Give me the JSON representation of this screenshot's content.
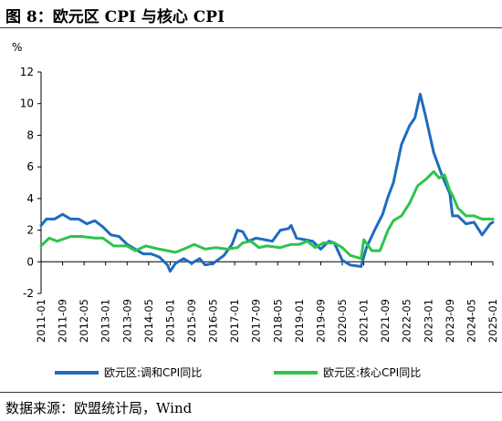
{
  "figure": {
    "title": "图 8：欧元区 CPI 与核心 CPI",
    "source": "数据来源：欧盟统计局，Wind"
  },
  "chart_data": {
    "type": "line",
    "ylabel": "%",
    "ylim": [
      -2,
      12
    ],
    "yticks": [
      -2,
      0,
      2,
      4,
      6,
      8,
      10,
      12
    ],
    "xlim": [
      "2011-01",
      "2025-01"
    ],
    "xticks": [
      "2011-01",
      "2011-09",
      "2012-05",
      "2013-01",
      "2013-09",
      "2014-05",
      "2015-01",
      "2015-09",
      "2016-05",
      "2017-01",
      "2017-09",
      "2018-05",
      "2019-01",
      "2019-09",
      "2020-05",
      "2021-01",
      "2021-09",
      "2022-05",
      "2023-01",
      "2023-09",
      "2024-05",
      "2025-01"
    ],
    "grid": false,
    "legend_position": "bottom",
    "series": [
      {
        "name": "欧元区:调和CPI同比",
        "color": "#1f6bbf",
        "x": [
          "2011-01",
          "2011-03",
          "2011-06",
          "2011-09",
          "2011-12",
          "2012-03",
          "2012-06",
          "2012-09",
          "2012-12",
          "2013-03",
          "2013-06",
          "2013-09",
          "2013-12",
          "2014-03",
          "2014-06",
          "2014-09",
          "2014-12",
          "2015-01",
          "2015-03",
          "2015-06",
          "2015-09",
          "2015-12",
          "2016-02",
          "2016-05",
          "2016-09",
          "2016-12",
          "2017-02",
          "2017-04",
          "2017-06",
          "2017-09",
          "2017-12",
          "2018-03",
          "2018-06",
          "2018-09",
          "2018-10",
          "2018-12",
          "2019-03",
          "2019-06",
          "2019-09",
          "2019-12",
          "2020-02",
          "2020-05",
          "2020-08",
          "2020-12",
          "2021-02",
          "2021-05",
          "2021-08",
          "2021-10",
          "2021-12",
          "2022-03",
          "2022-06",
          "2022-08",
          "2022-10",
          "2022-12",
          "2023-03",
          "2023-06",
          "2023-09",
          "2023-10",
          "2023-12",
          "2024-03",
          "2024-06",
          "2024-09",
          "2024-12",
          "2025-01"
        ],
        "values": [
          2.3,
          2.7,
          2.7,
          3.0,
          2.7,
          2.7,
          2.4,
          2.6,
          2.2,
          1.7,
          1.6,
          1.1,
          0.8,
          0.5,
          0.5,
          0.3,
          -0.2,
          -0.6,
          -0.1,
          0.2,
          -0.1,
          0.2,
          -0.2,
          -0.1,
          0.4,
          1.1,
          2.0,
          1.9,
          1.3,
          1.5,
          1.4,
          1.3,
          2.0,
          2.1,
          2.3,
          1.5,
          1.4,
          1.3,
          0.8,
          1.3,
          1.2,
          0.1,
          -0.2,
          -0.3,
          0.9,
          2.0,
          3.0,
          4.1,
          5.0,
          7.4,
          8.6,
          9.1,
          10.6,
          9.2,
          6.9,
          5.5,
          4.3,
          2.9,
          2.9,
          2.4,
          2.5,
          1.7,
          2.4,
          2.5
        ]
      },
      {
        "name": "欧元区:核心CPI同比",
        "color": "#2ec44a",
        "x": [
          "2011-01",
          "2011-04",
          "2011-07",
          "2011-12",
          "2012-04",
          "2012-09",
          "2012-12",
          "2013-04",
          "2013-09",
          "2013-12",
          "2014-04",
          "2014-09",
          "2014-12",
          "2015-03",
          "2015-06",
          "2015-10",
          "2016-02",
          "2016-06",
          "2016-10",
          "2017-02",
          "2017-04",
          "2017-07",
          "2017-10",
          "2018-01",
          "2018-06",
          "2018-10",
          "2019-01",
          "2019-04",
          "2019-07",
          "2019-10",
          "2020-02",
          "2020-05",
          "2020-08",
          "2020-12",
          "2021-01",
          "2021-04",
          "2021-07",
          "2021-10",
          "2021-12",
          "2022-03",
          "2022-06",
          "2022-09",
          "2022-12",
          "2023-03",
          "2023-05",
          "2023-07",
          "2023-09",
          "2023-10",
          "2023-12",
          "2024-03",
          "2024-06",
          "2024-09",
          "2024-12",
          "2025-01"
        ],
        "values": [
          1.0,
          1.5,
          1.3,
          1.6,
          1.6,
          1.5,
          1.5,
          1.0,
          1.0,
          0.7,
          1.0,
          0.8,
          0.7,
          0.6,
          0.8,
          1.1,
          0.8,
          0.9,
          0.8,
          0.9,
          1.2,
          1.3,
          0.9,
          1.0,
          0.9,
          1.1,
          1.1,
          1.3,
          0.9,
          1.2,
          1.2,
          0.9,
          0.4,
          0.2,
          1.4,
          0.7,
          0.7,
          2.0,
          2.6,
          2.9,
          3.7,
          4.8,
          5.2,
          5.7,
          5.3,
          5.5,
          4.5,
          4.2,
          3.4,
          2.9,
          2.9,
          2.7,
          2.7,
          2.7
        ]
      }
    ]
  }
}
